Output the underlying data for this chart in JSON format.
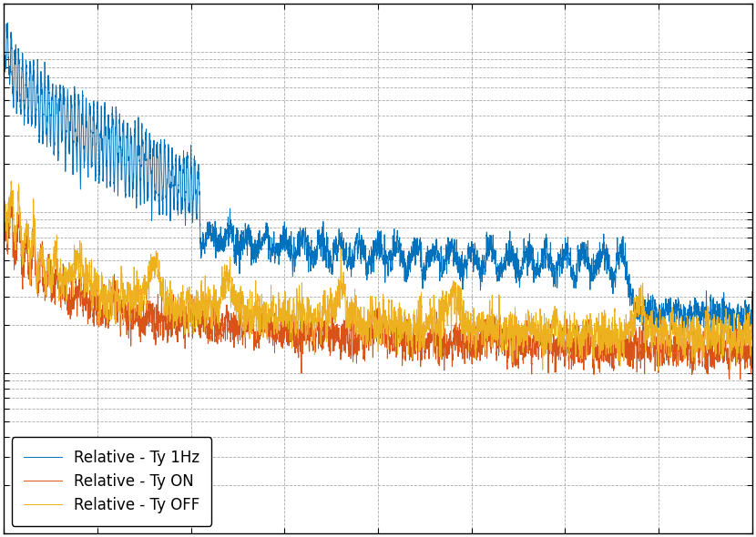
{
  "title": "",
  "xlabel": "",
  "ylabel": "",
  "line1_label": "Relative - Ty 1Hz",
  "line2_label": "Relative - Ty ON",
  "line3_label": "Relative - Ty OFF",
  "line1_color": "#0072BD",
  "line2_color": "#D95319",
  "line3_color": "#EDB120",
  "background_color": "#FFFFFF",
  "grid_color": "#CCCCCC",
  "legend_loc": "lower left",
  "legend_fontsize": 12,
  "figsize": [
    8.3,
    5.9
  ],
  "dpi": 100
}
